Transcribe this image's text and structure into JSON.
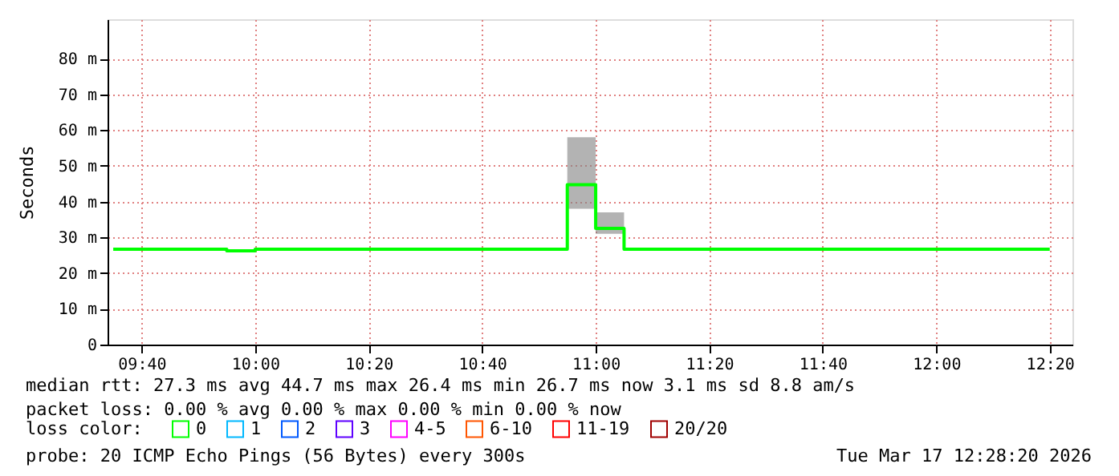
{
  "chart_data": {
    "type": "step",
    "ylabel": "Seconds",
    "legend_title": "loss color:",
    "x": [
      "2026-03-17T09:35",
      "2026-03-17T09:40",
      "2026-03-17T09:45",
      "2026-03-17T09:50",
      "2026-03-17T09:55",
      "2026-03-17T10:00",
      "2026-03-17T10:05",
      "2026-03-17T10:10",
      "2026-03-17T10:15",
      "2026-03-17T10:20",
      "2026-03-17T10:25",
      "2026-03-17T10:30",
      "2026-03-17T10:35",
      "2026-03-17T10:40",
      "2026-03-17T10:45",
      "2026-03-17T10:50",
      "2026-03-17T10:55",
      "2026-03-17T11:00",
      "2026-03-17T11:05",
      "2026-03-17T11:10",
      "2026-03-17T11:15",
      "2026-03-17T11:20",
      "2026-03-17T11:25",
      "2026-03-17T11:30",
      "2026-03-17T11:35",
      "2026-03-17T11:40",
      "2026-03-17T11:45",
      "2026-03-17T11:50",
      "2026-03-17T11:55",
      "2026-03-17T12:00",
      "2026-03-17T12:05",
      "2026-03-17T12:10",
      "2026-03-17T12:15",
      "2026-03-17T12:20"
    ],
    "series": [
      {
        "name": "0",
        "color": "#00ff00",
        "values": [
          26.7,
          26.7,
          26.7,
          26.7,
          26.2,
          26.7,
          26.7,
          26.7,
          26.7,
          26.7,
          26.7,
          26.7,
          26.7,
          26.7,
          26.7,
          26.7,
          44.7,
          32.5,
          26.7,
          26.7,
          26.7,
          26.7,
          26.7,
          26.7,
          26.7,
          26.7,
          26.7,
          26.7,
          26.7,
          26.7,
          26.7,
          26.7,
          26.7,
          26.7
        ],
        "lower": [
          null,
          null,
          null,
          null,
          null,
          null,
          null,
          null,
          null,
          null,
          null,
          null,
          null,
          null,
          null,
          null,
          38,
          31,
          26.7,
          null,
          null,
          null,
          null,
          null,
          null,
          null,
          null,
          null,
          null,
          null,
          null,
          null,
          null,
          null
        ],
        "upper": [
          null,
          null,
          null,
          null,
          null,
          null,
          null,
          null,
          null,
          null,
          null,
          null,
          null,
          null,
          null,
          null,
          58,
          37,
          26.7,
          null,
          null,
          null,
          null,
          null,
          null,
          null,
          null,
          null,
          null,
          null,
          null,
          null,
          null,
          null
        ]
      },
      {
        "name": "1",
        "color": "#00b8ff",
        "values": [
          null,
          null,
          null,
          null,
          null,
          null,
          null,
          null,
          null,
          null,
          null,
          null,
          null,
          null,
          null,
          null,
          null,
          null,
          null,
          null,
          null,
          null,
          null,
          null,
          null,
          null,
          null,
          null,
          null,
          null,
          null,
          null,
          null,
          null
        ]
      },
      {
        "name": "2",
        "color": "#0059ff",
        "values": [
          null,
          null,
          null,
          null,
          null,
          null,
          null,
          null,
          null,
          null,
          null,
          null,
          null,
          null,
          null,
          null,
          null,
          null,
          null,
          null,
          null,
          null,
          null,
          null,
          null,
          null,
          null,
          null,
          null,
          null,
          null,
          null,
          null,
          null
        ]
      },
      {
        "name": "3",
        "color": "#5e00ff",
        "values": [
          null,
          null,
          null,
          null,
          null,
          null,
          null,
          null,
          null,
          null,
          null,
          null,
          null,
          null,
          null,
          null,
          null,
          null,
          null,
          null,
          null,
          null,
          null,
          null,
          null,
          null,
          null,
          null,
          null,
          null,
          null,
          null,
          null,
          null
        ]
      },
      {
        "name": "4-5",
        "color": "#ff00ff",
        "values": [
          null,
          null,
          null,
          null,
          null,
          null,
          null,
          null,
          null,
          null,
          null,
          null,
          null,
          null,
          null,
          null,
          null,
          null,
          null,
          null,
          null,
          null,
          null,
          null,
          null,
          null,
          null,
          null,
          null,
          null,
          null,
          null,
          null,
          null
        ]
      },
      {
        "name": "6-10",
        "color": "#ff5500",
        "values": [
          null,
          null,
          null,
          null,
          null,
          null,
          null,
          null,
          null,
          null,
          null,
          null,
          null,
          null,
          null,
          null,
          null,
          null,
          null,
          null,
          null,
          null,
          null,
          null,
          null,
          null,
          null,
          null,
          null,
          null,
          null,
          null,
          null,
          null
        ]
      },
      {
        "name": "11-19",
        "color": "#ff0000",
        "values": [
          null,
          null,
          null,
          null,
          null,
          null,
          null,
          null,
          null,
          null,
          null,
          null,
          null,
          null,
          null,
          null,
          null,
          null,
          null,
          null,
          null,
          null,
          null,
          null,
          null,
          null,
          null,
          null,
          null,
          null,
          null,
          null,
          null,
          null
        ]
      },
      {
        "name": "20/20",
        "color": "#a10000",
        "values": [
          null,
          null,
          null,
          null,
          null,
          null,
          null,
          null,
          null,
          null,
          null,
          null,
          null,
          null,
          null,
          null,
          null,
          null,
          null,
          null,
          null,
          null,
          null,
          null,
          null,
          null,
          null,
          null,
          null,
          null,
          null,
          null,
          null,
          null
        ]
      }
    ],
    "xlim": [
      "2026-03-17T09:34",
      "2026-03-17T12:24"
    ],
    "xticks": [
      {
        "value": "2026-03-17T09:40",
        "label": "09:40"
      },
      {
        "value": "2026-03-17T10:00",
        "label": "10:00"
      },
      {
        "value": "2026-03-17T10:20",
        "label": "10:20"
      },
      {
        "value": "2026-03-17T10:40",
        "label": "10:40"
      },
      {
        "value": "2026-03-17T11:00",
        "label": "11:00"
      },
      {
        "value": "2026-03-17T11:20",
        "label": "11:20"
      },
      {
        "value": "2026-03-17T11:40",
        "label": "11:40"
      },
      {
        "value": "2026-03-17T12:00",
        "label": "12:00"
      },
      {
        "value": "2026-03-17T12:20",
        "label": "12:20"
      }
    ],
    "ylim": [
      0,
      91
    ],
    "yticks": [
      0,
      {
        "value": 10,
        "label": "10 m"
      },
      {
        "value": 20,
        "label": "20 m"
      },
      {
        "value": 30,
        "label": "30 m"
      },
      {
        "value": 40,
        "label": "40 m"
      },
      {
        "value": 50,
        "label": "50 m"
      },
      {
        "value": 60,
        "label": "60 m"
      },
      {
        "value": 70,
        "label": "70 m"
      },
      {
        "value": 80,
        "label": "80 m"
      }
    ],
    "grid": true,
    "legend": "bottom",
    "annotations": [
      "median rtt:  27.3 ms avg  44.7 ms max  26.4 ms min  26.7 ms now  3.1 ms sd  8.8   am/s",
      "packet loss: 0.00 % avg  0.00 % max  0.00 % min  0.00 % now",
      "probe:       20 ICMP Echo Pings (56 Bytes) every 300s",
      "Tue Mar 17 12:28:20 2026"
    ]
  }
}
